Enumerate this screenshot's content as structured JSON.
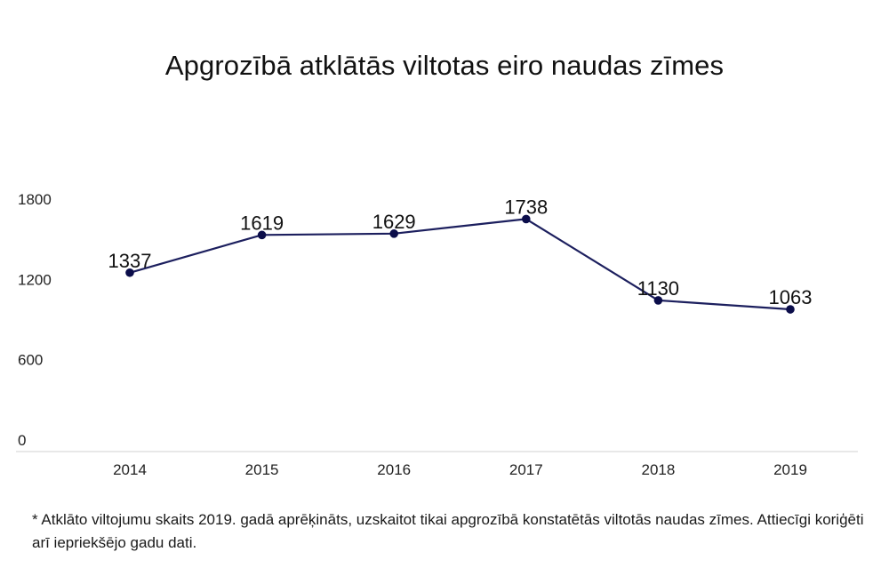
{
  "chart_data": {
    "type": "line",
    "title": "Apgrozībā atklātās viltotas eiro naudas zīmes",
    "categories": [
      "2014",
      "2015",
      "2016",
      "2017",
      "2018",
      "2019"
    ],
    "series": [
      {
        "values": [
          1337,
          1619,
          1629,
          1738,
          1130,
          1063
        ]
      }
    ],
    "data_labels": [
      "1337",
      "1619",
      "1629",
      "1738",
      "1130",
      "1063"
    ],
    "y_ticks": [
      "0",
      "600",
      "1200",
      "1800"
    ],
    "ylim": [
      0,
      1900
    ],
    "xlabel": "",
    "ylabel": "",
    "grid": false,
    "line_color": "#1c1f5e",
    "marker_color": "#0b0d4a"
  },
  "footnote": "* Atklāto viltojumu skaits 2019. gadā aprēķināts, uzskaitot tikai apgrozībā konstatētās viltotās naudas zīmes. Attiecīgi koriģēti arī iepriekšējo gadu dati."
}
